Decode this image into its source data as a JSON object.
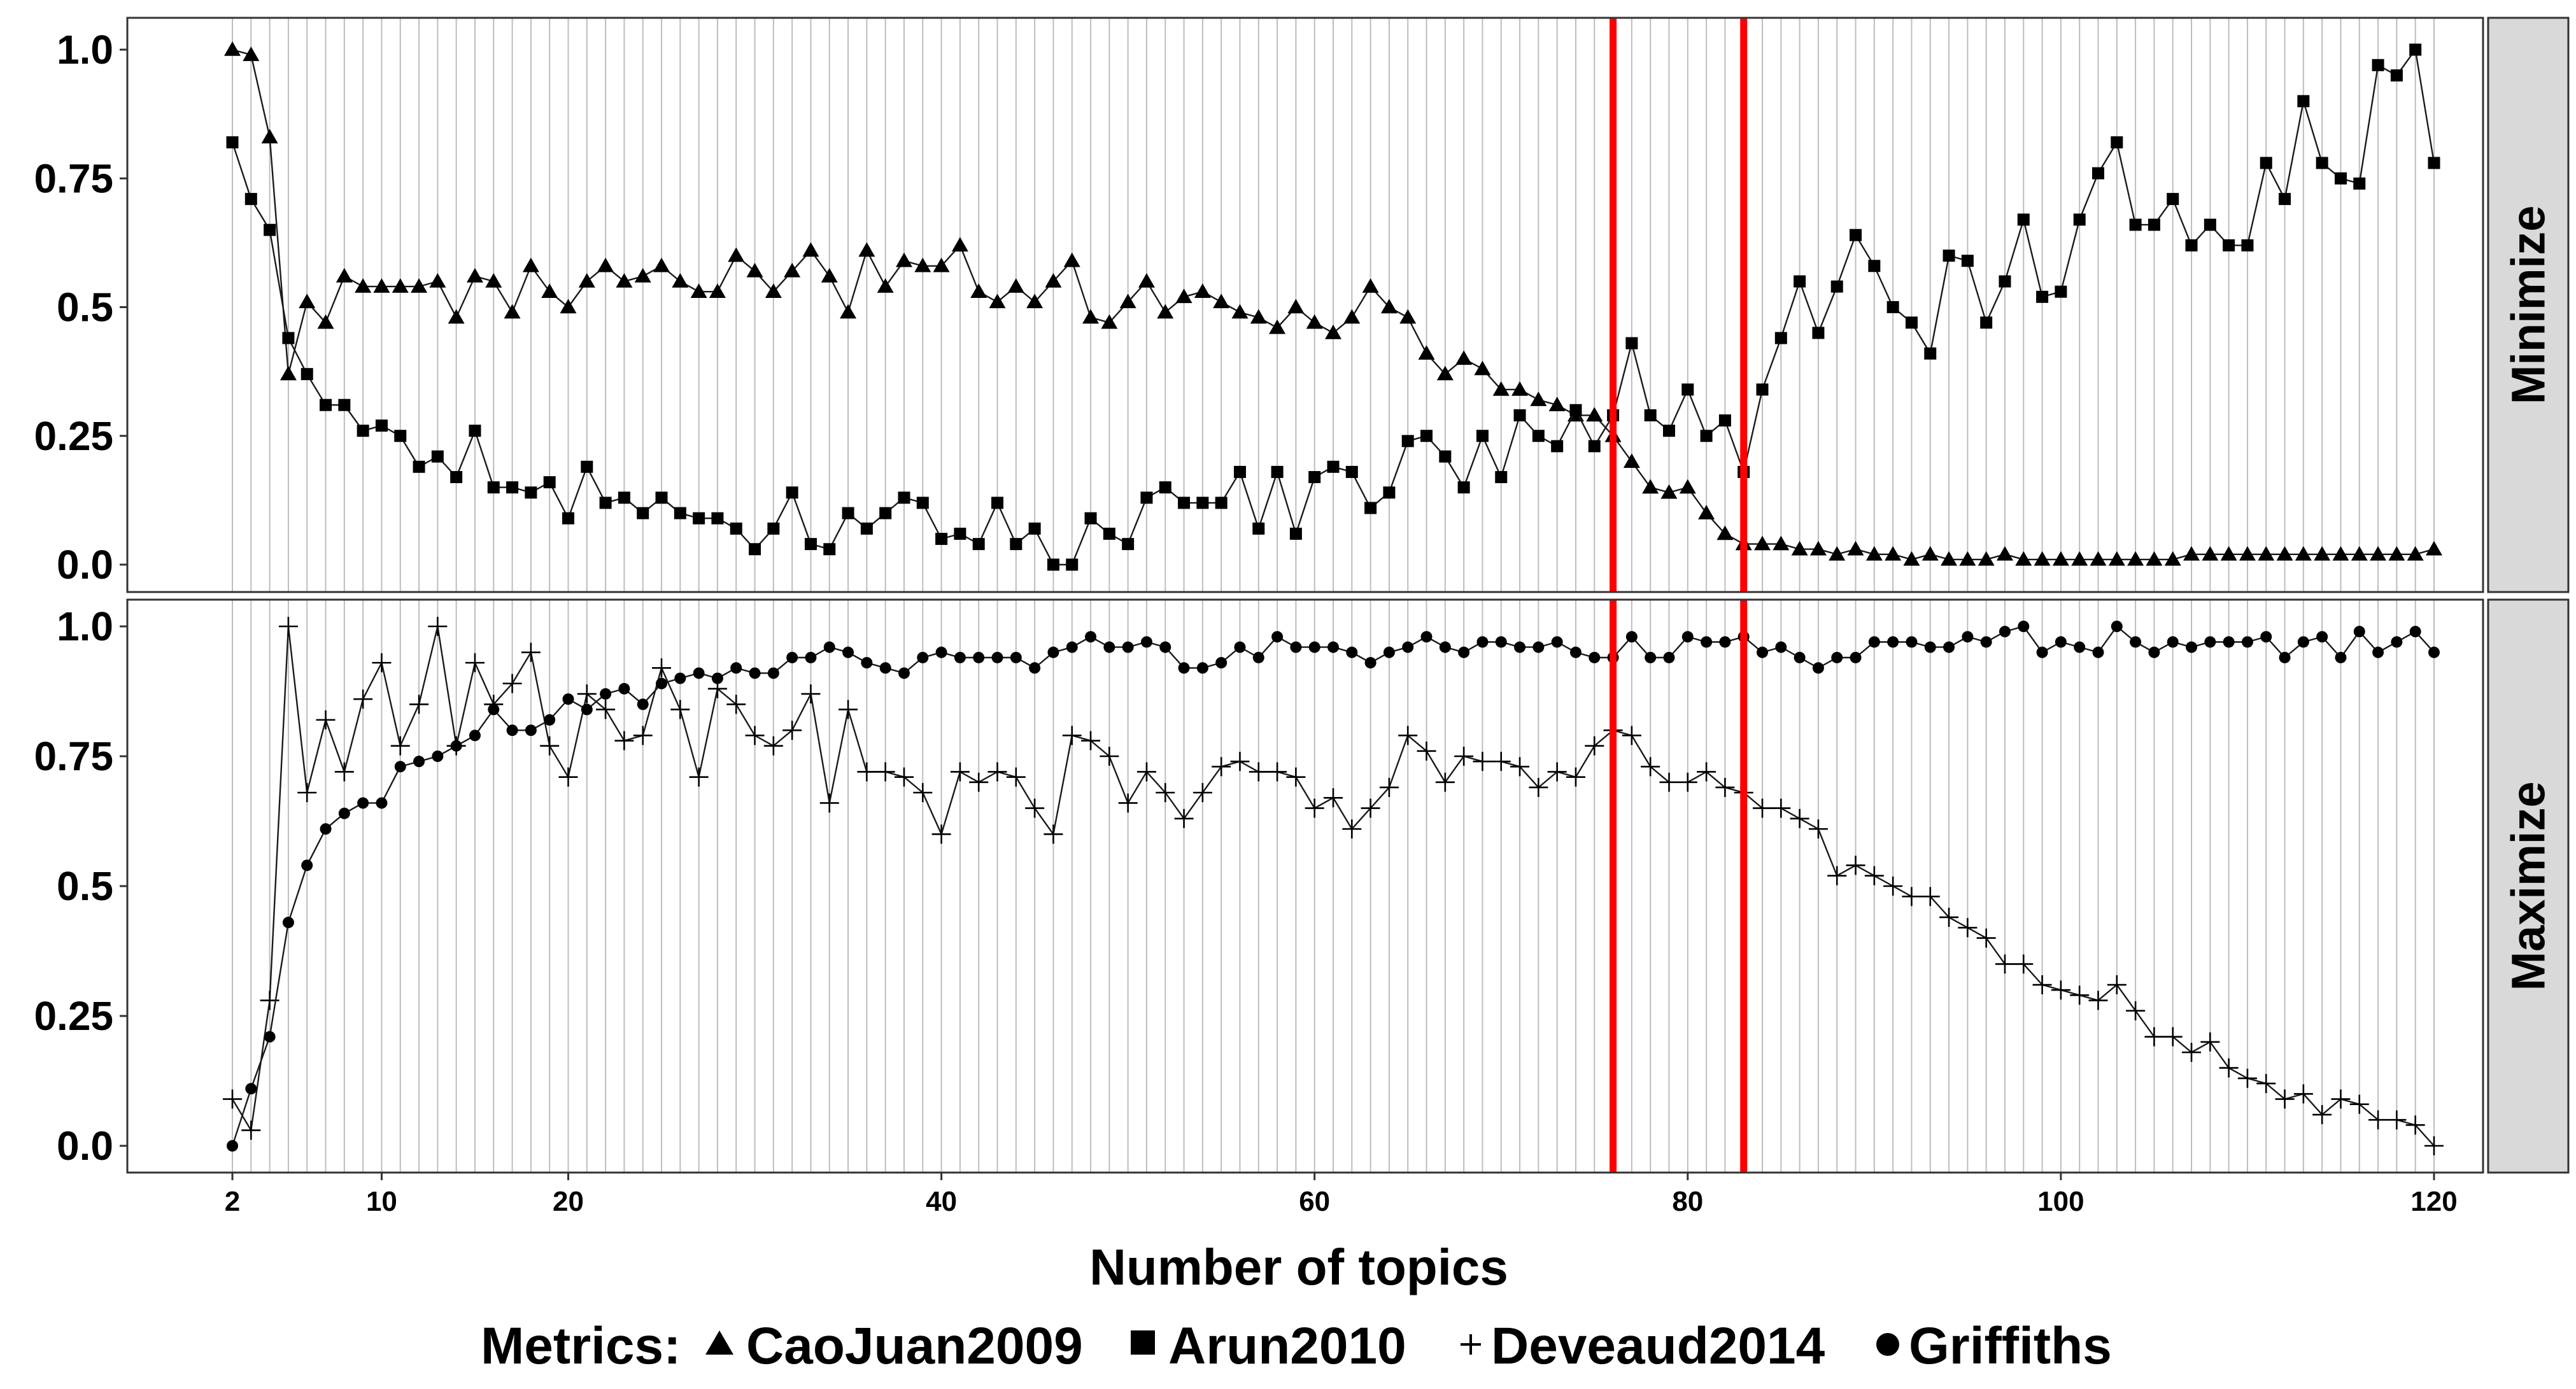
{
  "chart_data": {
    "type": "line",
    "facet_labels": [
      "Minimize",
      "Maximize"
    ],
    "xlabel": "Number of topics",
    "x_ticks": [
      2,
      10,
      20,
      40,
      60,
      80,
      100,
      120
    ],
    "xlim": [
      2,
      120
    ],
    "ylim": [
      0,
      1
    ],
    "y_ticks": [
      "0.0",
      "0.25",
      "0.5",
      "0.75",
      "1.0"
    ],
    "grid": "vertical lines at each number of topics",
    "highlight_x": [
      76,
      83
    ],
    "highlight_color": "#ff0000",
    "legend": {
      "title": "Metrics:",
      "position": "bottom"
    },
    "facets": [
      {
        "label": "Minimize",
        "series": [
          {
            "name": "CaoJuan2009",
            "marker": "triangle",
            "x": [
              2,
              3,
              4,
              5,
              6,
              7,
              8,
              9,
              10,
              11,
              12,
              13,
              14,
              15,
              16,
              17,
              18,
              19,
              20,
              21,
              22,
              23,
              24,
              25,
              26,
              27,
              28,
              29,
              30,
              31,
              32,
              33,
              34,
              35,
              36,
              37,
              38,
              39,
              40,
              41,
              42,
              43,
              44,
              45,
              46,
              47,
              48,
              49,
              50,
              51,
              52,
              53,
              54,
              55,
              56,
              57,
              58,
              59,
              60,
              61,
              62,
              63,
              64,
              65,
              66,
              67,
              68,
              69,
              70,
              71,
              72,
              73,
              74,
              75,
              76,
              77,
              78,
              79,
              80,
              81,
              82,
              83,
              84,
              85,
              86,
              87,
              88,
              89,
              90,
              91,
              92,
              93,
              94,
              95,
              96,
              97,
              98,
              99,
              100,
              101,
              102,
              103,
              104,
              105,
              106,
              107,
              108,
              109,
              110,
              111,
              112,
              113,
              114,
              115,
              116,
              117,
              118,
              119,
              120
            ],
            "y": [
              1.0,
              0.99,
              0.83,
              0.37,
              0.51,
              0.47,
              0.56,
              0.54,
              0.54,
              0.54,
              0.54,
              0.55,
              0.48,
              0.56,
              0.55,
              0.49,
              0.58,
              0.53,
              0.5,
              0.55,
              0.58,
              0.55,
              0.56,
              0.58,
              0.55,
              0.53,
              0.53,
              0.6,
              0.57,
              0.53,
              0.57,
              0.61,
              0.56,
              0.49,
              0.61,
              0.54,
              0.59,
              0.58,
              0.58,
              0.62,
              0.53,
              0.51,
              0.54,
              0.51,
              0.55,
              0.59,
              0.48,
              0.47,
              0.51,
              0.55,
              0.49,
              0.52,
              0.53,
              0.51,
              0.49,
              0.48,
              0.46,
              0.5,
              0.47,
              0.45,
              0.48,
              0.54,
              0.5,
              0.48,
              0.41,
              0.37,
              0.4,
              0.38,
              0.34,
              0.34,
              0.32,
              0.31,
              0.29,
              0.29,
              0.25,
              0.2,
              0.15,
              0.14,
              0.15,
              0.1,
              0.06,
              0.04,
              0.04,
              0.04,
              0.03,
              0.03,
              0.02,
              0.03,
              0.02,
              0.02,
              0.01,
              0.02,
              0.01,
              0.01,
              0.01,
              0.02,
              0.01,
              0.01,
              0.01,
              0.01,
              0.01,
              0.01,
              0.01,
              0.01,
              0.01,
              0.02,
              0.02,
              0.02,
              0.02,
              0.02,
              0.02,
              0.02,
              0.02,
              0.02,
              0.02,
              0.02,
              0.02,
              0.02,
              0.03
            ]
          },
          {
            "name": "Arun2010",
            "marker": "square",
            "x": [
              2,
              3,
              4,
              5,
              6,
              7,
              8,
              9,
              10,
              11,
              12,
              13,
              14,
              15,
              16,
              17,
              18,
              19,
              20,
              21,
              22,
              23,
              24,
              25,
              26,
              27,
              28,
              29,
              30,
              31,
              32,
              33,
              34,
              35,
              36,
              37,
              38,
              39,
              40,
              41,
              42,
              43,
              44,
              45,
              46,
              47,
              48,
              49,
              50,
              51,
              52,
              53,
              54,
              55,
              56,
              57,
              58,
              59,
              60,
              61,
              62,
              63,
              64,
              65,
              66,
              67,
              68,
              69,
              70,
              71,
              72,
              73,
              74,
              75,
              76,
              77,
              78,
              79,
              80,
              81,
              82,
              83,
              84,
              85,
              86,
              87,
              88,
              89,
              90,
              91,
              92,
              93,
              94,
              95,
              96,
              97,
              98,
              99,
              100,
              101,
              102,
              103,
              104,
              105,
              106,
              107,
              108,
              109,
              110,
              111,
              112,
              113,
              114,
              115,
              116,
              117,
              118,
              119,
              120
            ],
            "y": [
              0.82,
              0.71,
              0.65,
              0.44,
              0.37,
              0.31,
              0.31,
              0.26,
              0.27,
              0.25,
              0.19,
              0.21,
              0.17,
              0.26,
              0.15,
              0.15,
              0.14,
              0.16,
              0.09,
              0.19,
              0.12,
              0.13,
              0.1,
              0.13,
              0.1,
              0.09,
              0.09,
              0.07,
              0.03,
              0.07,
              0.14,
              0.04,
              0.03,
              0.1,
              0.07,
              0.1,
              0.13,
              0.12,
              0.05,
              0.06,
              0.04,
              0.12,
              0.04,
              0.07,
              0.0,
              0.0,
              0.09,
              0.06,
              0.04,
              0.13,
              0.15,
              0.12,
              0.12,
              0.12,
              0.18,
              0.07,
              0.18,
              0.06,
              0.17,
              0.19,
              0.18,
              0.11,
              0.14,
              0.24,
              0.25,
              0.21,
              0.15,
              0.25,
              0.17,
              0.29,
              0.25,
              0.23,
              0.3,
              0.23,
              0.29,
              0.43,
              0.29,
              0.26,
              0.34,
              0.25,
              0.28,
              0.18,
              0.34,
              0.44,
              0.55,
              0.45,
              0.54,
              0.64,
              0.58,
              0.5,
              0.47,
              0.41,
              0.6,
              0.59,
              0.47,
              0.55,
              0.67,
              0.52,
              0.53,
              0.67,
              0.76,
              0.82,
              0.66,
              0.66,
              0.71,
              0.62,
              0.66,
              0.62,
              0.62,
              0.78,
              0.71,
              0.9,
              0.78,
              0.75,
              0.74,
              0.97,
              0.95,
              1.0,
              0.78
            ]
          }
        ]
      },
      {
        "label": "Maximize",
        "series": [
          {
            "name": "Deveaud2014",
            "marker": "plus",
            "x": [
              2,
              3,
              4,
              5,
              6,
              7,
              8,
              9,
              10,
              11,
              12,
              13,
              14,
              15,
              16,
              17,
              18,
              19,
              20,
              21,
              22,
              23,
              24,
              25,
              26,
              27,
              28,
              29,
              30,
              31,
              32,
              33,
              34,
              35,
              36,
              37,
              38,
              39,
              40,
              41,
              42,
              43,
              44,
              45,
              46,
              47,
              48,
              49,
              50,
              51,
              52,
              53,
              54,
              55,
              56,
              57,
              58,
              59,
              60,
              61,
              62,
              63,
              64,
              65,
              66,
              67,
              68,
              69,
              70,
              71,
              72,
              73,
              74,
              75,
              76,
              77,
              78,
              79,
              80,
              81,
              82,
              83,
              84,
              85,
              86,
              87,
              88,
              89,
              90,
              91,
              92,
              93,
              94,
              95,
              96,
              97,
              98,
              99,
              100,
              101,
              102,
              103,
              104,
              105,
              106,
              107,
              108,
              109,
              110,
              111,
              112,
              113,
              114,
              115,
              116,
              117,
              118,
              119,
              120
            ],
            "y": [
              0.09,
              0.03,
              0.28,
              1.0,
              0.68,
              0.82,
              0.72,
              0.86,
              0.93,
              0.77,
              0.85,
              1.0,
              0.77,
              0.93,
              0.85,
              0.89,
              0.95,
              0.77,
              0.71,
              0.87,
              0.84,
              0.78,
              0.79,
              0.92,
              0.84,
              0.71,
              0.88,
              0.85,
              0.79,
              0.77,
              0.8,
              0.87,
              0.66,
              0.84,
              0.72,
              0.72,
              0.71,
              0.68,
              0.6,
              0.72,
              0.7,
              0.72,
              0.71,
              0.65,
              0.6,
              0.79,
              0.78,
              0.75,
              0.66,
              0.72,
              0.68,
              0.63,
              0.68,
              0.73,
              0.74,
              0.72,
              0.72,
              0.71,
              0.65,
              0.67,
              0.61,
              0.65,
              0.69,
              0.79,
              0.76,
              0.7,
              0.75,
              0.74,
              0.74,
              0.73,
              0.69,
              0.72,
              0.71,
              0.77,
              0.8,
              0.79,
              0.73,
              0.7,
              0.7,
              0.72,
              0.69,
              0.68,
              0.65,
              0.65,
              0.63,
              0.61,
              0.52,
              0.54,
              0.52,
              0.5,
              0.48,
              0.48,
              0.44,
              0.42,
              0.4,
              0.35,
              0.35,
              0.31,
              0.3,
              0.29,
              0.28,
              0.31,
              0.26,
              0.21,
              0.21,
              0.18,
              0.2,
              0.15,
              0.13,
              0.12,
              0.09,
              0.1,
              0.06,
              0.09,
              0.08,
              0.05,
              0.05,
              0.04,
              0.0
            ]
          },
          {
            "name": "Griffiths",
            "marker": "circle",
            "x": [
              2,
              3,
              4,
              5,
              6,
              7,
              8,
              9,
              10,
              11,
              12,
              13,
              14,
              15,
              16,
              17,
              18,
              19,
              20,
              21,
              22,
              23,
              24,
              25,
              26,
              27,
              28,
              29,
              30,
              31,
              32,
              33,
              34,
              35,
              36,
              37,
              38,
              39,
              40,
              41,
              42,
              43,
              44,
              45,
              46,
              47,
              48,
              49,
              50,
              51,
              52,
              53,
              54,
              55,
              56,
              57,
              58,
              59,
              60,
              61,
              62,
              63,
              64,
              65,
              66,
              67,
              68,
              69,
              70,
              71,
              72,
              73,
              74,
              75,
              76,
              77,
              78,
              79,
              80,
              81,
              82,
              83,
              84,
              85,
              86,
              87,
              88,
              89,
              90,
              91,
              92,
              93,
              94,
              95,
              96,
              97,
              98,
              99,
              100,
              101,
              102,
              103,
              104,
              105,
              106,
              107,
              108,
              109,
              110,
              111,
              112,
              113,
              114,
              115,
              116,
              117,
              118,
              119,
              120
            ],
            "y": [
              0.0,
              0.11,
              0.21,
              0.43,
              0.54,
              0.61,
              0.64,
              0.66,
              0.66,
              0.73,
              0.74,
              0.75,
              0.77,
              0.79,
              0.84,
              0.8,
              0.8,
              0.82,
              0.86,
              0.84,
              0.87,
              0.88,
              0.85,
              0.89,
              0.9,
              0.91,
              0.9,
              0.92,
              0.91,
              0.91,
              0.94,
              0.94,
              0.96,
              0.95,
              0.93,
              0.92,
              0.91,
              0.94,
              0.95,
              0.94,
              0.94,
              0.94,
              0.94,
              0.92,
              0.95,
              0.96,
              0.98,
              0.96,
              0.96,
              0.97,
              0.96,
              0.92,
              0.92,
              0.93,
              0.96,
              0.94,
              0.98,
              0.96,
              0.96,
              0.96,
              0.95,
              0.93,
              0.95,
              0.96,
              0.98,
              0.96,
              0.95,
              0.97,
              0.97,
              0.96,
              0.96,
              0.97,
              0.95,
              0.94,
              0.94,
              0.98,
              0.94,
              0.94,
              0.98,
              0.97,
              0.97,
              0.98,
              0.95,
              0.96,
              0.94,
              0.92,
              0.94,
              0.94,
              0.97,
              0.97,
              0.97,
              0.96,
              0.96,
              0.98,
              0.97,
              0.99,
              1.0,
              0.95,
              0.97,
              0.96,
              0.95,
              1.0,
              0.97,
              0.95,
              0.97,
              0.96,
              0.97,
              0.97,
              0.97,
              0.98,
              0.94,
              0.97,
              0.98,
              0.94,
              0.99,
              0.95,
              0.97,
              0.99,
              0.95
            ]
          }
        ]
      }
    ]
  }
}
